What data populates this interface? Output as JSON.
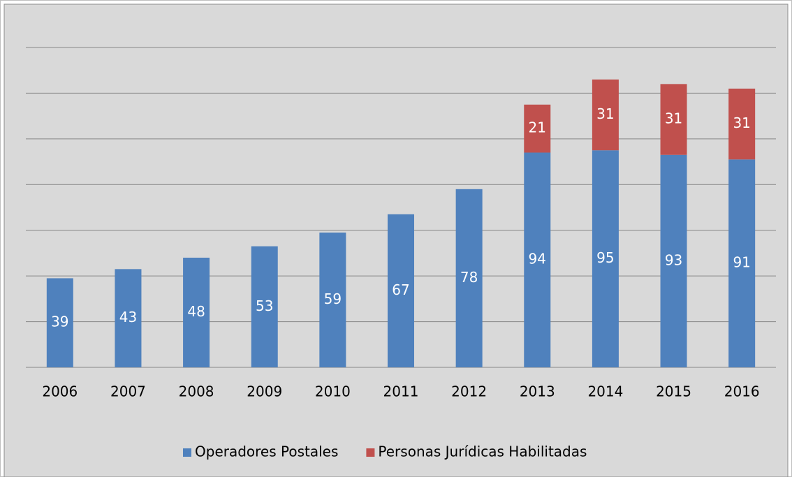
{
  "chart_data": {
    "type": "stacked_bar",
    "categories": [
      "2006",
      "2007",
      "2008",
      "2009",
      "2010",
      "2011",
      "2012",
      "2013",
      "2014",
      "2015",
      "2016"
    ],
    "series": [
      {
        "name": "Operadores Postales",
        "color": "#4f81bd",
        "values": [
          39,
          43,
          48,
          53,
          59,
          67,
          78,
          94,
          95,
          93,
          91
        ]
      },
      {
        "name": "Personas Jurídicas Habilitadas",
        "color": "#c0504d",
        "values": [
          null,
          null,
          null,
          null,
          null,
          null,
          null,
          21,
          31,
          31,
          31
        ]
      }
    ],
    "ylim": [
      0,
      140
    ],
    "yticks": [
      0,
      20,
      40,
      60,
      80,
      100,
      120,
      140
    ],
    "grid": true,
    "legend": "bottom"
  }
}
